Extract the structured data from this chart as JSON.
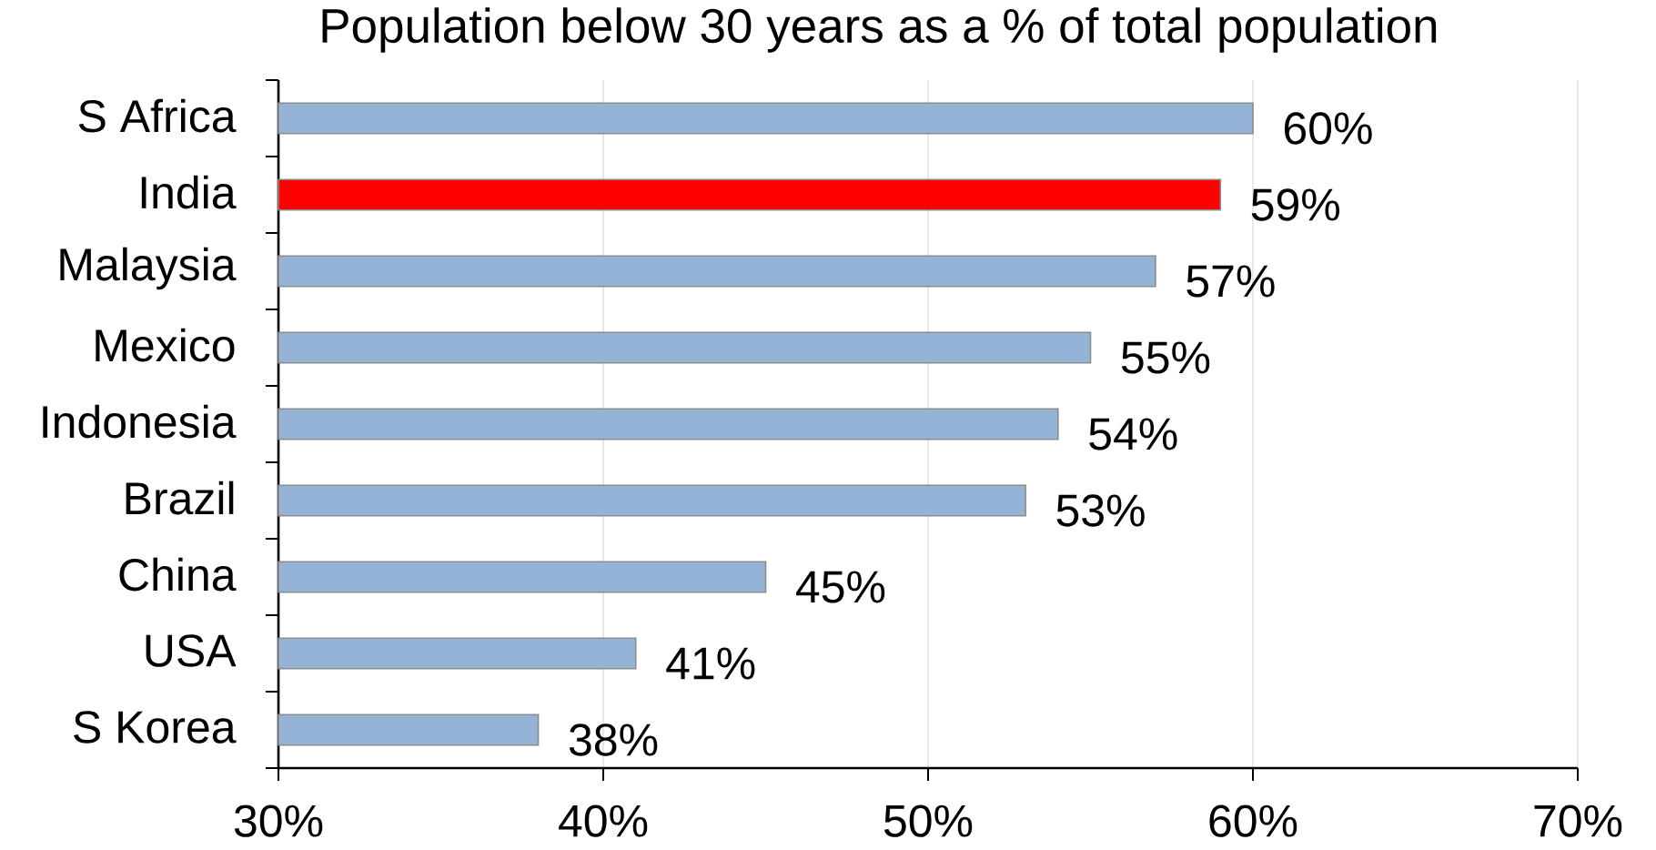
{
  "chart_data": {
    "type": "bar",
    "orientation": "horizontal",
    "title": "Population below 30 years as a % of total population",
    "categories": [
      "S Africa",
      "India",
      "Malaysia",
      "Mexico",
      "Indonesia",
      "Brazil",
      "China",
      "USA",
      "S Korea"
    ],
    "values": [
      60,
      59,
      57,
      55,
      54,
      53,
      45,
      41,
      38
    ],
    "colors": [
      "#95b3d7",
      "#ff0000",
      "#95b3d7",
      "#95b3d7",
      "#95b3d7",
      "#95b3d7",
      "#95b3d7",
      "#95b3d7",
      "#95b3d7"
    ],
    "value_labels": [
      "60%",
      "59%",
      "57%",
      "55%",
      "54%",
      "53%",
      "45%",
      "41%",
      "38%"
    ],
    "xlim": [
      30,
      70
    ],
    "xticks": [
      {
        "value": 30,
        "label": "30%"
      },
      {
        "value": 40,
        "label": "40%"
      },
      {
        "value": 50,
        "label": "50%"
      },
      {
        "value": 60,
        "label": "60%"
      },
      {
        "value": 70,
        "label": "70%"
      }
    ],
    "grid": "x"
  }
}
